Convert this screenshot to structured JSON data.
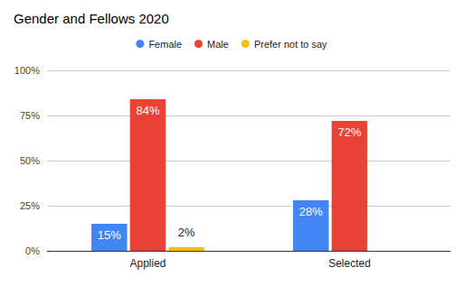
{
  "chart_data": {
    "type": "bar",
    "title": "Gender and Fellows 2020",
    "categories": [
      "Applied",
      "Selected"
    ],
    "series": [
      {
        "name": "Female",
        "color": "#4285f4",
        "values": [
          15,
          28
        ],
        "value_labels": [
          "15%",
          "28%"
        ]
      },
      {
        "name": "Male",
        "color": "#ea4335",
        "values": [
          84,
          72
        ],
        "value_labels": [
          "84%",
          "72%"
        ]
      },
      {
        "name": "Prefer not to say",
        "color": "#fbbc04",
        "values": [
          2,
          null
        ],
        "value_labels": [
          "2%",
          null
        ]
      }
    ],
    "ylim": [
      0,
      100
    ],
    "yticks": [
      {
        "value": 0,
        "label": "0%"
      },
      {
        "value": 25,
        "label": "25%"
      },
      {
        "value": 50,
        "label": "50%"
      },
      {
        "value": 75,
        "label": "75%"
      },
      {
        "value": 100,
        "label": "100%"
      }
    ],
    "grid": true,
    "legend": "top",
    "data_labels": true
  }
}
